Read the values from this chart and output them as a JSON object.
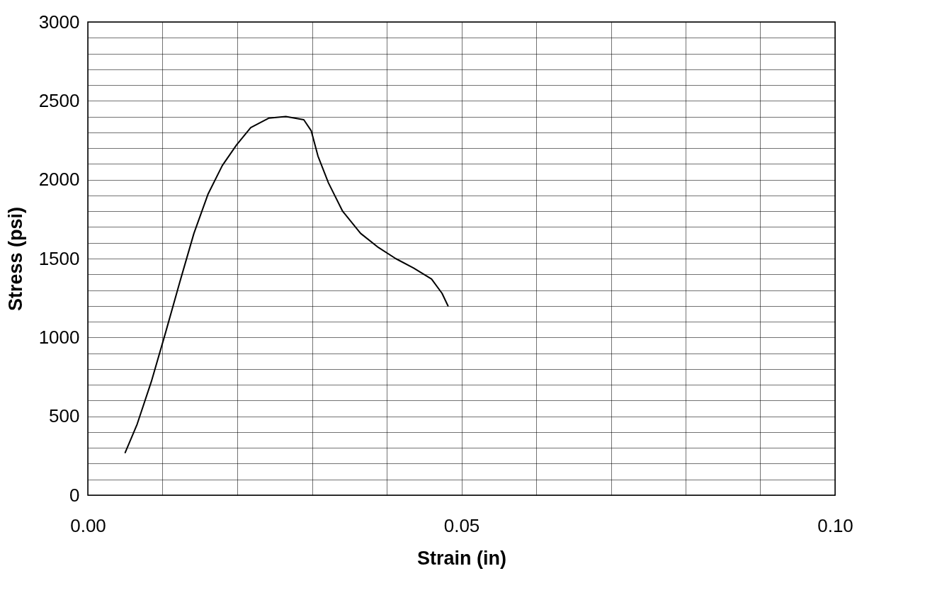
{
  "chart_data": {
    "type": "line",
    "xlabel": "Strain (in)",
    "ylabel": "Stress (psi)",
    "x": [
      0.005,
      0.0066,
      0.0085,
      0.0104,
      0.0123,
      0.0142,
      0.0161,
      0.018,
      0.0199,
      0.0218,
      0.0242,
      0.0265,
      0.0289,
      0.0299,
      0.0308,
      0.0322,
      0.0341,
      0.0365,
      0.0389,
      0.0412,
      0.0436,
      0.046,
      0.0474,
      0.0482
    ],
    "series": [
      {
        "color": "#000000",
        "values": [
          270,
          450,
          720,
          1030,
          1350,
          1660,
          1910,
          2090,
          2220,
          2330,
          2390,
          2400,
          2380,
          2310,
          2150,
          1980,
          1800,
          1660,
          1570,
          1500,
          1440,
          1370,
          1280,
          1200
        ]
      }
    ],
    "xlim": [
      0,
      0.1
    ],
    "xticks": [
      {
        "value": 0,
        "label": "0.00"
      },
      {
        "value": 0.01,
        "label": null
      },
      {
        "value": 0.02,
        "label": null
      },
      {
        "value": 0.03,
        "label": null
      },
      {
        "value": 0.04,
        "label": null
      },
      {
        "value": 0.05,
        "label": "0.05"
      },
      {
        "value": 0.06,
        "label": null
      },
      {
        "value": 0.07,
        "label": null
      },
      {
        "value": 0.08,
        "label": null
      },
      {
        "value": 0.09,
        "label": null
      },
      {
        "value": 0.1,
        "label": "0.10"
      }
    ],
    "ylim": [
      0,
      3000
    ],
    "yticks": [
      0,
      {
        "value": 100,
        "label": null
      },
      {
        "value": 200,
        "label": null
      },
      {
        "value": 300,
        "label": null
      },
      {
        "value": 400,
        "label": null
      },
      500,
      {
        "value": 600,
        "label": null
      },
      {
        "value": 700,
        "label": null
      },
      {
        "value": 800,
        "label": null
      },
      {
        "value": 900,
        "label": null
      },
      1000,
      {
        "value": 1100,
        "label": null
      },
      {
        "value": 1200,
        "label": null
      },
      {
        "value": 1300,
        "label": null
      },
      {
        "value": 1400,
        "label": null
      },
      1500,
      {
        "value": 1600,
        "label": null
      },
      {
        "value": 1700,
        "label": null
      },
      {
        "value": 1800,
        "label": null
      },
      {
        "value": 1900,
        "label": null
      },
      2000,
      {
        "value": 2100,
        "label": null
      },
      {
        "value": 2200,
        "label": null
      },
      {
        "value": 2300,
        "label": null
      },
      {
        "value": 2400,
        "label": null
      },
      2500,
      {
        "value": 2600,
        "label": null
      },
      {
        "value": 2700,
        "label": null
      },
      {
        "value": 2800,
        "label": null
      },
      {
        "value": 2900,
        "label": null
      },
      3000
    ],
    "grid": true,
    "marker": "none",
    "line_style": "solid"
  }
}
